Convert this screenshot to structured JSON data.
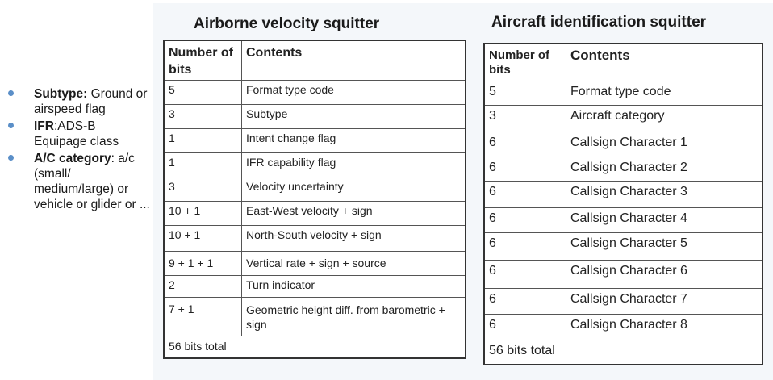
{
  "bullets": [
    {
      "bold": "Subtype:",
      "text": " Ground or airspeed flag"
    },
    {
      "bold": "IFR",
      "text": ":ADS-B Equipage class"
    },
    {
      "bold": "A/C category",
      "text": ": a/c (small/ medium/large) or vehicle or glider or ..."
    }
  ],
  "velocity": {
    "title": "Airborne velocity squitter",
    "header": {
      "col1": "Number of bits",
      "col2": "Contents"
    },
    "rows": [
      {
        "bits": "5",
        "contents": "Format type code"
      },
      {
        "bits": "3",
        "contents": "Subtype"
      },
      {
        "bits": "1",
        "contents": "Intent change flag"
      },
      {
        "bits": "1",
        "contents": "IFR capability flag"
      },
      {
        "bits": "3",
        "contents": "Velocity uncertainty"
      },
      {
        "bits": "10 + 1",
        "contents": "East-West velocity + sign"
      },
      {
        "bits": "10 + 1",
        "contents": "North-South velocity + sign"
      },
      {
        "bits": "9 + 1 + 1",
        "contents": "Vertical rate + sign + source"
      },
      {
        "bits": "2",
        "contents": "Turn indicator"
      },
      {
        "bits": "7 + 1",
        "contents": "Geometric height diff. from barometric + sign"
      }
    ],
    "total": "56 bits total"
  },
  "identification": {
    "title": "Aircraft identification squitter",
    "header": {
      "col1": "Number of bits",
      "col2": "Contents"
    },
    "rows": [
      {
        "bits": "5",
        "contents": "Format type code"
      },
      {
        "bits": "3",
        "contents": "Aircraft category"
      },
      {
        "bits": "6",
        "contents": "Callsign Character 1"
      },
      {
        "bits": "6",
        "contents": "Callsign Character 2"
      },
      {
        "bits": "6",
        "contents": "Callsign Character 3"
      },
      {
        "bits": "6",
        "contents": "Callsign Character 4"
      },
      {
        "bits": "6",
        "contents": "Callsign Character 5"
      },
      {
        "bits": "6",
        "contents": "Callsign Character 6"
      },
      {
        "bits": "6",
        "contents": "Callsign Character 7"
      },
      {
        "bits": "6",
        "contents": "Callsign Character 8"
      }
    ],
    "total": "56 bits total"
  },
  "colors": {
    "bullet": "#5b8fc8",
    "panel": "#f4f7fa",
    "border": "#333333"
  }
}
